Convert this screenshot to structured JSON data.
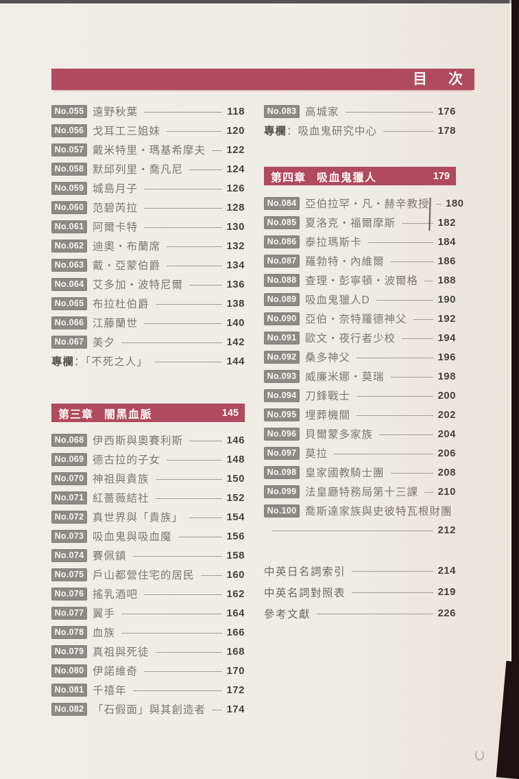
{
  "page_title": "目　次",
  "colors": {
    "accent_bar": "#b04a5e",
    "badge_gray": "#8e8a86",
    "paper": "#efece6",
    "scan_edge": "#1d1114"
  },
  "left": {
    "rows1": [
      {
        "no": "No.055",
        "title": "遠野秋葉",
        "page": "118"
      },
      {
        "no": "No.056",
        "title": "戈耳工三姐妹",
        "page": "120"
      },
      {
        "no": "No.057",
        "title": "戴米特里・瑪基希摩夫",
        "page": "122"
      },
      {
        "no": "No.058",
        "title": "默邱列里・喬凡尼",
        "page": "124"
      },
      {
        "no": "No.059",
        "title": "城島月子",
        "page": "126"
      },
      {
        "no": "No.060",
        "title": "范碧芮拉",
        "page": "128"
      },
      {
        "no": "No.061",
        "title": "阿爾卡特",
        "page": "130"
      },
      {
        "no": "No.062",
        "title": "迪奧・布蘭席",
        "page": "132"
      },
      {
        "no": "No.063",
        "title": "戴・亞蒙伯爵",
        "page": "134"
      },
      {
        "no": "No.064",
        "title": "艾多加・波特尼爾",
        "page": "136"
      },
      {
        "no": "No.065",
        "title": "布拉杜伯爵",
        "page": "138"
      },
      {
        "no": "No.066",
        "title": "江藤蘭世",
        "page": "140"
      },
      {
        "no": "No.067",
        "title": "美夕",
        "page": "142"
      }
    ],
    "special": {
      "label": "專欄",
      "title": "：「不死之人」",
      "page": "144"
    },
    "chapter": {
      "label": "第三章",
      "title": "闇黑血脈",
      "page": "145"
    },
    "rows2": [
      {
        "no": "No.068",
        "title": "伊西斯與奧賽利斯",
        "page": "146"
      },
      {
        "no": "No.069",
        "title": "德古拉的子女",
        "page": "148"
      },
      {
        "no": "No.070",
        "title": "神祖與貴族",
        "page": "150"
      },
      {
        "no": "No.071",
        "title": "紅薔薇結社",
        "page": "152"
      },
      {
        "no": "No.072",
        "title": "真世界與「貴族」",
        "page": "154"
      },
      {
        "no": "No.073",
        "title": "吸血鬼與吸血魔",
        "page": "156"
      },
      {
        "no": "No.074",
        "title": "賽佩鎮",
        "page": "158"
      },
      {
        "no": "No.075",
        "title": "戶山都營住宅的居民",
        "page": "160"
      },
      {
        "no": "No.076",
        "title": "搖乳酒吧",
        "page": "162"
      },
      {
        "no": "No.077",
        "title": "翼手",
        "page": "164"
      },
      {
        "no": "No.078",
        "title": "血族",
        "page": "166"
      },
      {
        "no": "No.079",
        "title": "真祖與死徒",
        "page": "168"
      },
      {
        "no": "No.080",
        "title": "伊諾維奇",
        "page": "170"
      },
      {
        "no": "No.081",
        "title": "千禧年",
        "page": "172"
      },
      {
        "no": "No.082",
        "title": "「石假面」與其創造者",
        "page": "174"
      }
    ]
  },
  "right": {
    "rows1": [
      {
        "no": "No.083",
        "title": "高城家",
        "page": "176"
      }
    ],
    "special": {
      "label": "專欄",
      "title": "：吸血鬼研究中心",
      "page": "178"
    },
    "chapter": {
      "label": "第四章",
      "title": "吸血鬼獵人",
      "page": "179"
    },
    "rows2": [
      {
        "no": "No.084",
        "title": "亞伯拉罕・凡・赫辛教授",
        "page": "180"
      },
      {
        "no": "No.085",
        "title": "夏洛克・福爾摩斯",
        "page": "182"
      },
      {
        "no": "No.086",
        "title": "泰拉瑪斯卡",
        "page": "184"
      },
      {
        "no": "No.087",
        "title": "羅勃特・內維爾",
        "page": "186"
      },
      {
        "no": "No.088",
        "title": "查理・彭寧頓・波爾格",
        "page": "188"
      },
      {
        "no": "No.089",
        "title": "吸血鬼獵人D",
        "page": "190"
      },
      {
        "no": "No.090",
        "title": "亞伯・奈特羅德神父",
        "page": "192"
      },
      {
        "no": "No.091",
        "title": "歐文・夜行者少校",
        "page": "194"
      },
      {
        "no": "No.092",
        "title": "桑多神父",
        "page": "196"
      },
      {
        "no": "No.093",
        "title": "威廉米娜・莫瑞",
        "page": "198"
      },
      {
        "no": "No.094",
        "title": "刀鋒戰士",
        "page": "200"
      },
      {
        "no": "No.095",
        "title": "埋葬機關",
        "page": "202"
      },
      {
        "no": "No.096",
        "title": "貝爾蒙多家族",
        "page": "204"
      },
      {
        "no": "No.097",
        "title": "莫拉",
        "page": "206"
      },
      {
        "no": "No.098",
        "title": "皇家國教騎士團",
        "page": "208"
      },
      {
        "no": "No.099",
        "title": "法皇廳特務局第十三課",
        "page": "210"
      }
    ],
    "no100": {
      "no": "No.100",
      "title": "喬斯達家族與史彼特瓦根財團",
      "page": "212"
    },
    "back_matter": [
      {
        "title": "中英日名詞索引",
        "page": "214"
      },
      {
        "title": "中英名詞對照表",
        "page": "219"
      },
      {
        "title": "參考文獻",
        "page": "226"
      }
    ]
  }
}
